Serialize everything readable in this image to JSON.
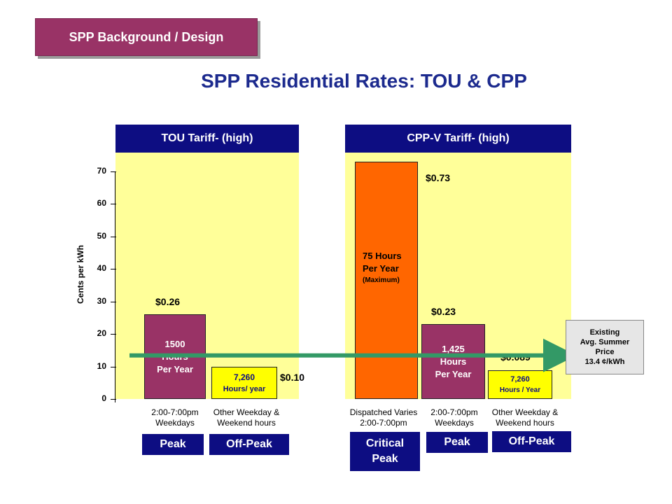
{
  "section_tag": "SPP Background / Design",
  "title": "SPP Residential Rates: TOU & CPP",
  "colors": {
    "navy": "#0d0d82",
    "plum": "#993366",
    "orange": "#ff6600",
    "yellow": "#ffff99",
    "green": "#339966"
  },
  "chart_data": {
    "type": "bar",
    "ylabel": "Cents per kWh",
    "ylim": [
      0,
      70
    ],
    "yticks": [
      "0",
      "10",
      "20",
      "30",
      "40",
      "50",
      "60",
      "70"
    ],
    "panels": [
      {
        "header": "TOU Tariff- (high)",
        "bars": [
          {
            "value": 26,
            "price": "$0.26",
            "text": [
              "1500",
              "Hours",
              "Per Year"
            ],
            "category": [
              "2:00-7:00pm",
              "Weekdays"
            ],
            "period": "Peak",
            "color": "#993366"
          },
          {
            "value": 10,
            "price": "$0.10",
            "text": [
              "7,260",
              "Hours/ year"
            ],
            "category": [
              "Other Weekday &",
              "Weekend hours"
            ],
            "period": "Off-Peak",
            "color": "#ffff00"
          }
        ]
      },
      {
        "header": "CPP-V Tariff- (high)",
        "bars": [
          {
            "value": 73,
            "price": "$0.73",
            "text": [
              "75 Hours",
              "Per Year",
              "(Maximum)"
            ],
            "category": [
              "Dispatched Varies",
              "2:00-7:00pm"
            ],
            "period": "Critical Peak",
            "color": "#ff6600"
          },
          {
            "value": 23,
            "price": "$0.23",
            "text": [
              "1,425",
              "Hours",
              "Per Year"
            ],
            "category": [
              "2:00-7:00pm",
              "Weekdays"
            ],
            "period": "Peak",
            "color": "#993366"
          },
          {
            "value": 8.9,
            "price": "$0.089",
            "text": [
              "7,260",
              "Hours / Year"
            ],
            "category": [
              "Other Weekday &",
              "Weekend hours"
            ],
            "period": "Off-Peak",
            "color": "#ffff00"
          }
        ]
      }
    ],
    "reference_line": {
      "value": 13.4,
      "label": [
        "Existing",
        "Avg. Summer",
        "Price",
        "13.4 ¢/kWh"
      ]
    }
  }
}
